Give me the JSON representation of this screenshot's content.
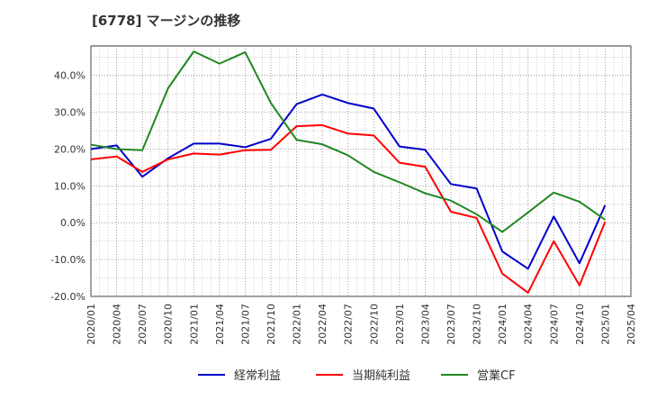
{
  "chart_data": {
    "type": "line",
    "title": "[6778]  マージンの推移",
    "xlabel": "",
    "ylabel": "",
    "ylim": [
      -20,
      48
    ],
    "yticks": [
      -20,
      -10,
      0,
      10,
      20,
      30,
      40
    ],
    "ytick_labels": [
      "-20.0%",
      "-10.0%",
      "0.0%",
      "10.0%",
      "20.0%",
      "30.0%",
      "40.0%"
    ],
    "grid": true,
    "legend_position": "bottom",
    "x_tick_labels": [
      "2020/01",
      "2020/04",
      "2020/07",
      "2020/10",
      "2021/01",
      "2021/04",
      "2021/07",
      "2021/10",
      "2022/01",
      "2022/04",
      "2022/07",
      "2022/10",
      "2023/01",
      "2023/04",
      "2023/07",
      "2023/10",
      "2024/01",
      "2024/04",
      "2024/07",
      "2024/10",
      "2025/01",
      "2025/04"
    ],
    "categories": [
      "2020/01",
      "2020/04",
      "2020/07",
      "2020/10",
      "2021/01",
      "2021/04",
      "2021/07",
      "2021/10",
      "2022/01",
      "2022/04",
      "2022/07",
      "2022/10",
      "2023/01",
      "2023/04",
      "2023/07",
      "2023/10",
      "2024/01",
      "2024/04",
      "2024/07",
      "2024/10",
      "2025/01"
    ],
    "series": [
      {
        "name": "経常利益",
        "color": "#0000cc",
        "values": [
          20.0,
          21.0,
          12.5,
          17.5,
          21.5,
          21.5,
          20.5,
          22.8,
          32.2,
          34.8,
          32.5,
          31.0,
          20.7,
          19.8,
          10.5,
          9.3,
          -7.8,
          -12.5,
          1.7,
          -11.0,
          4.8
        ]
      },
      {
        "name": "当期純利益",
        "color": "#ff0000",
        "values": [
          17.2,
          18.0,
          13.8,
          17.2,
          18.8,
          18.5,
          19.7,
          19.8,
          26.2,
          26.5,
          24.2,
          23.7,
          16.3,
          15.2,
          3.0,
          1.3,
          -13.8,
          -19.0,
          -5.0,
          -17.0,
          0.3
        ]
      },
      {
        "name": "営業CF",
        "color": "#228822",
        "values": [
          21.2,
          20.0,
          19.7,
          36.5,
          46.5,
          43.2,
          46.3,
          32.5,
          22.5,
          21.3,
          18.3,
          13.8,
          11.0,
          8.0,
          6.0,
          2.3,
          -2.5,
          2.8,
          8.2,
          5.7,
          0.8
        ]
      }
    ]
  }
}
